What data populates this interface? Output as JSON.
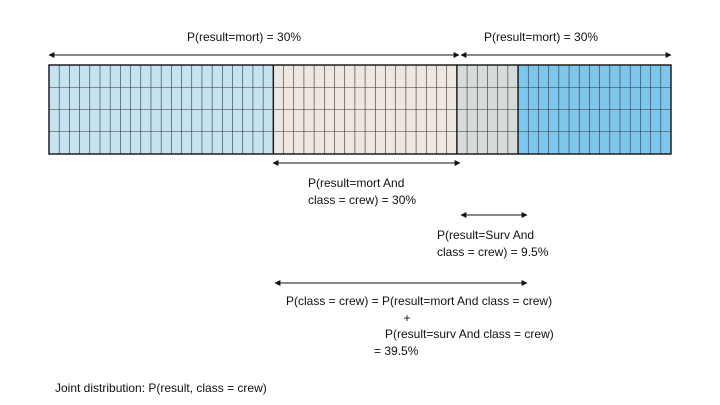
{
  "grid": {
    "rows": 4,
    "segments": [
      {
        "cells": 22,
        "color": "#c5e3f1"
      },
      {
        "cells": 18,
        "color": "#ede6e1"
      },
      {
        "cells": 6,
        "color": "#d7dcdb"
      },
      {
        "cells": 15,
        "color": "#7ec6ec"
      }
    ]
  },
  "labels": {
    "top_left": "P(result=mort) = 30%",
    "top_right": "P(result=mort) = 30%",
    "mort_crew_line1": "P(result=mort And",
    "mort_crew_line2": "class = crew) = 30%",
    "surv_crew_line1": "P(result=Surv And",
    "surv_crew_line2": "class = crew) = 9.5%",
    "crew_total_line1": "P(class = crew) = P(result=mort And  class = crew)",
    "crew_total_plus": "+",
    "crew_total_line2": "P(result=surv And  class = crew)",
    "crew_total_line3": "= 39.5%",
    "caption": "Joint distribution: P(result, class = crew)"
  }
}
